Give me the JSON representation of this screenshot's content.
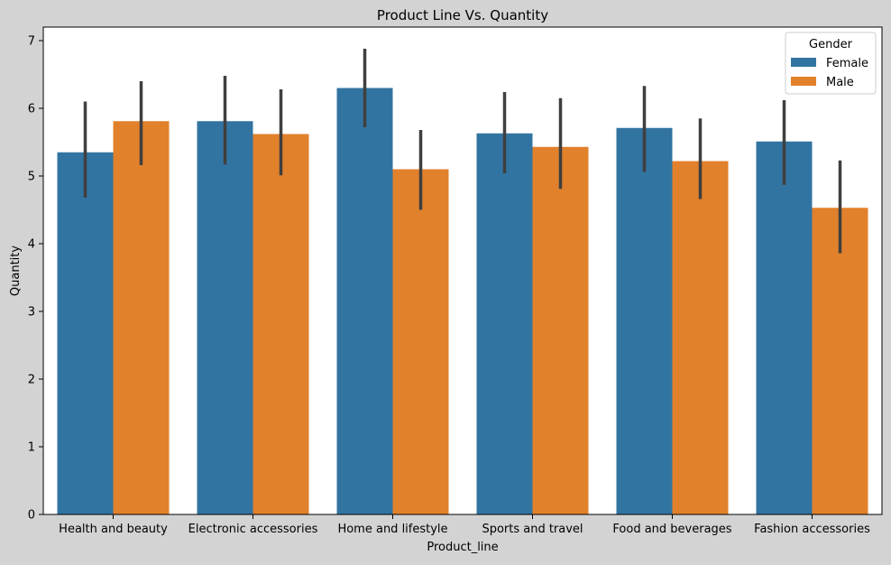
{
  "chart_data": {
    "type": "bar",
    "title": "Product Line Vs. Quantity",
    "xlabel": "Product_line",
    "ylabel": "Quantity",
    "ylim": [
      0,
      7.2
    ],
    "yticks": [
      0,
      1,
      2,
      3,
      4,
      5,
      6,
      7
    ],
    "grid": false,
    "categories": [
      "Health and beauty",
      "Electronic accessories",
      "Home and lifestyle",
      "Sports and travel",
      "Food and beverages",
      "Fashion accessories"
    ],
    "legend": {
      "title": "Gender",
      "placement": "top-right"
    },
    "series": [
      {
        "name": "Female",
        "color": "#3274a1",
        "values": [
          5.35,
          5.81,
          6.3,
          5.63,
          5.71,
          5.51
        ],
        "error_low": [
          4.68,
          5.17,
          5.72,
          5.04,
          5.06,
          4.87
        ],
        "error_high": [
          6.1,
          6.48,
          6.88,
          6.24,
          6.33,
          6.12
        ]
      },
      {
        "name": "Male",
        "color": "#e1812c",
        "values": [
          5.81,
          5.62,
          5.1,
          5.43,
          5.22,
          4.53
        ],
        "error_low": [
          5.16,
          5.01,
          4.5,
          4.81,
          4.66,
          3.86
        ],
        "error_high": [
          6.4,
          6.28,
          5.68,
          6.15,
          5.85,
          5.23
        ]
      }
    ],
    "errorbar_color": "#3f3f3f",
    "background": "#ffffff",
    "figure_background": "#d3d3d3"
  }
}
